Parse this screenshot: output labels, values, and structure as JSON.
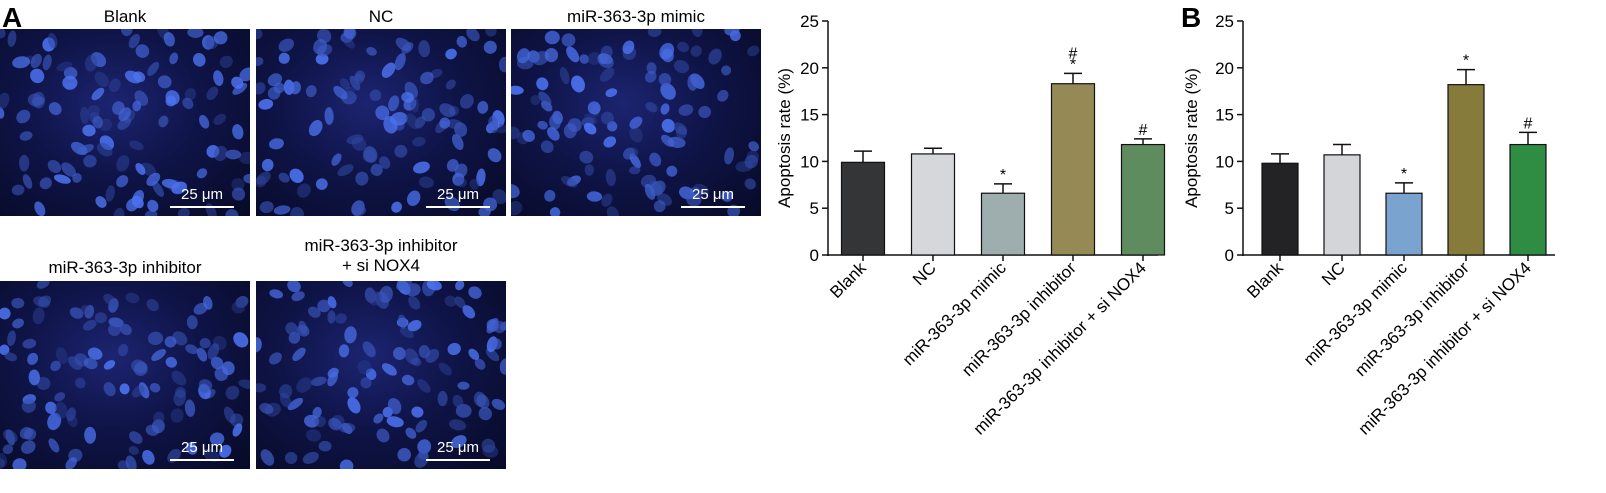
{
  "panel_labels": {
    "a": "A",
    "b": "B"
  },
  "images": [
    {
      "title_lines": [
        "Blank"
      ],
      "scale": "25 μm"
    },
    {
      "title_lines": [
        "NC"
      ],
      "scale": "25 μm"
    },
    {
      "title_lines": [
        "miR-363-3p mimic"
      ],
      "scale": "25 μm"
    },
    {
      "title_lines": [
        "miR-363-3p inhibitor"
      ],
      "scale": "25 μm"
    },
    {
      "title_lines": [
        "miR-363-3p inhibitor",
        "+ si NOX4"
      ],
      "scale": "25 μm"
    }
  ],
  "chart_data": [
    {
      "type": "bar",
      "categories": [
        "Blank",
        "NC",
        "miR-363-3p mimic",
        "miR-363-3p inhibitor",
        "miR-363-3p inhibitor + si NOX4"
      ],
      "values": [
        9.9,
        10.8,
        6.6,
        18.3,
        11.8
      ],
      "errors": [
        1.2,
        0.6,
        1.0,
        1.1,
        0.6
      ],
      "annotations": [
        [],
        [],
        [
          "*"
        ],
        [
          "*",
          "#"
        ],
        [
          "#"
        ]
      ],
      "colors": [
        "#333537",
        "#d5d7da",
        "#9eaeae",
        "#958a55",
        "#5e8c5e"
      ],
      "ylabel": "Apoptosis rate (%)",
      "ylim": [
        0,
        25
      ],
      "yticks": [
        0,
        5,
        10,
        15,
        20,
        25
      ]
    },
    {
      "type": "bar",
      "categories": [
        "Blank",
        "NC",
        "miR-363-3p mimic",
        "miR-363-3p inhibitor",
        "miR-363-3p inhibitor + si NOX4"
      ],
      "values": [
        9.8,
        10.7,
        6.6,
        18.2,
        11.8
      ],
      "errors": [
        1.0,
        1.1,
        1.1,
        1.6,
        1.3
      ],
      "annotations": [
        [],
        [],
        [
          "*"
        ],
        [
          "*"
        ],
        [
          "#"
        ]
      ],
      "colors": [
        "#232326",
        "#d3d5d8",
        "#7ba3cf",
        "#877b3c",
        "#2e8d43"
      ],
      "ylabel": "Apoptosis rate (%)",
      "ylim": [
        0,
        25
      ],
      "yticks": [
        0,
        5,
        10,
        15,
        20,
        25
      ]
    }
  ]
}
